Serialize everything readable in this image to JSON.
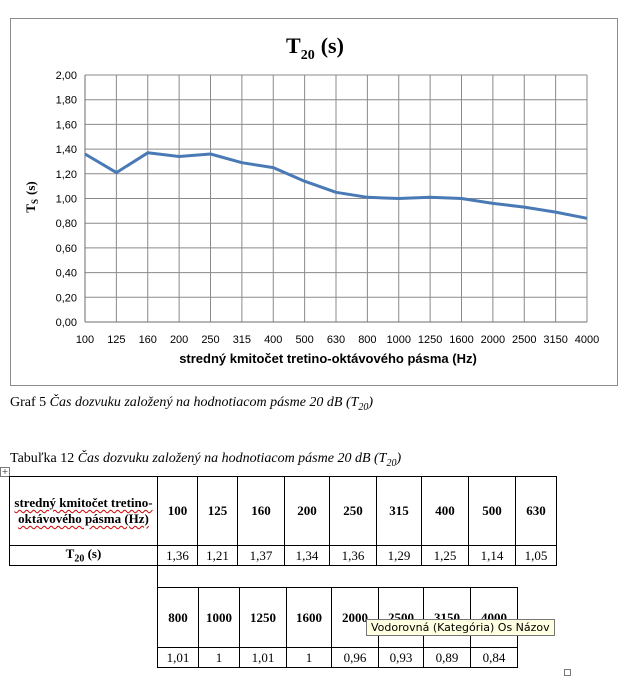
{
  "chart_data": {
    "type": "line",
    "title_main": "T",
    "title_sub": "20",
    "title_unit": "(s)",
    "ylabel_main": "T",
    "ylabel_sub": "S",
    "ylabel_unit": "(s)",
    "xlabel": "stredný kmitočet tretino-oktávového pásma (Hz)",
    "categories": [
      "100",
      "125",
      "160",
      "200",
      "250",
      "315",
      "400",
      "500",
      "630",
      "800",
      "1000",
      "1250",
      "1600",
      "2000",
      "2500",
      "3150",
      "4000"
    ],
    "values": [
      1.36,
      1.21,
      1.37,
      1.34,
      1.36,
      1.29,
      1.25,
      1.14,
      1.05,
      1.01,
      1.0,
      1.01,
      1.0,
      0.96,
      0.93,
      0.89,
      0.84
    ],
    "ylim": [
      0,
      2
    ],
    "yticks": [
      "0,00",
      "0,20",
      "0,40",
      "0,60",
      "0,80",
      "1,00",
      "1,20",
      "1,40",
      "1,60",
      "1,80",
      "2,00"
    ],
    "grid": true,
    "line_color": "#4a7ab5"
  },
  "captions": {
    "graph_prefix": "Graf 5 ",
    "graph_italic": "Čas dozvuku založený na hodnotiacom pásme 20 dB (T",
    "graph_sub": "20",
    "graph_end": ")",
    "table_prefix": "Tabuľka 12 ",
    "table_italic": "Čas dozvuku založený na hodnotiacom pásme 20 dB (T",
    "table_sub": "20",
    "table_end": ")"
  },
  "table": {
    "header_label": "stredný kmitočet tretino-oktávového pásma (Hz)",
    "row_label_main": "T",
    "row_label_sub": "20",
    "row_label_unit": " (s)",
    "freqs_row1": [
      "100",
      "125",
      "160",
      "200",
      "250",
      "315",
      "400",
      "500",
      "630"
    ],
    "vals_row1": [
      "1,36",
      "1,21",
      "1,37",
      "1,34",
      "1,36",
      "1,29",
      "1,25",
      "1,14",
      "1,05"
    ],
    "freqs_row2": [
      "800",
      "1000",
      "1250",
      "1600",
      "2000",
      "2500",
      "3150",
      "4000"
    ],
    "vals_row2": [
      "1,01",
      "1",
      "1,01",
      "1",
      "0,96",
      "0,93",
      "0,89",
      "0,84"
    ]
  },
  "tooltip": "Vodorovná (Kategória) Os Názov"
}
